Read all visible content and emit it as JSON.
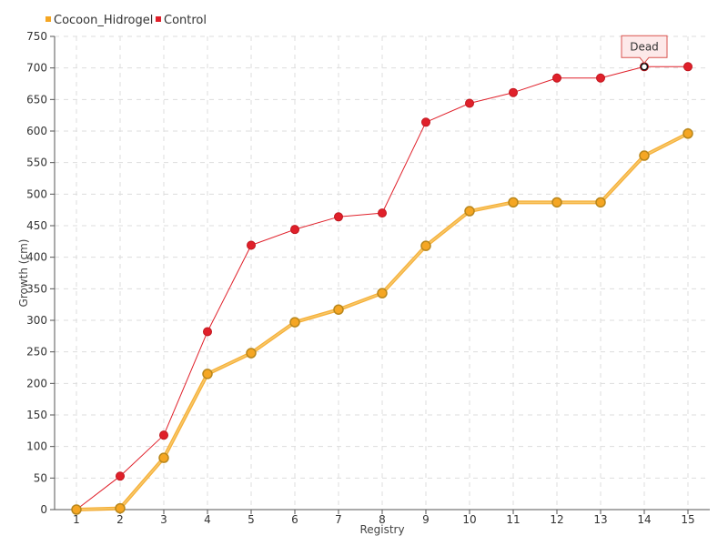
{
  "chart_data": {
    "type": "line",
    "xlabel": "Registry",
    "ylabel": "Growth (cm)",
    "categories": [
      "1",
      "2",
      "3",
      "4",
      "5",
      "6",
      "7",
      "8",
      "9",
      "10",
      "11",
      "12",
      "13",
      "14",
      "15"
    ],
    "ylim": [
      0,
      750
    ],
    "y_ticks": [
      "0",
      "50",
      "100",
      "150",
      "200",
      "250",
      "300",
      "350",
      "400",
      "450",
      "500",
      "550",
      "600",
      "650",
      "700",
      "750"
    ],
    "grid": true,
    "legend_position": "top-left",
    "series": [
      {
        "name": "Cocoon_Hidrogel",
        "color": "#f5a623",
        "values": [
          0,
          2,
          82,
          215,
          248,
          297,
          317,
          343,
          418,
          473,
          487,
          487,
          487,
          561,
          596
        ]
      },
      {
        "name": "Control",
        "color": "#e0202a",
        "values": [
          0,
          53,
          118,
          282,
          419,
          444,
          464,
          470,
          614,
          644,
          661,
          684,
          684,
          702,
          702
        ]
      }
    ],
    "annotations": [
      {
        "series": "Control",
        "category": "14",
        "value": 702,
        "text": "Dead"
      }
    ]
  }
}
